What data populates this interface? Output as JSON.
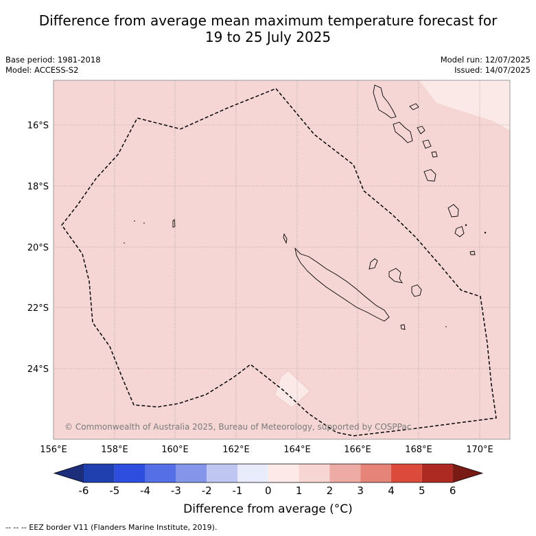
{
  "title_line1": "Difference from average mean maximum temperature forecast for",
  "title_line2": "19 to 25 July 2025",
  "base_period": "Base period: 1981-2018",
  "model": "Model: ACCESS-S2",
  "model_run": "Model run: 12/07/2025",
  "issued": "Issued: 14/07/2025",
  "copyright": "© Commonwealth of Australia 2025, Bureau of Meteorology, supported by COSPPac",
  "lon_ticks": [
    "156°E",
    "158°E",
    "160°E",
    "162°E",
    "164°E",
    "166°E",
    "168°E",
    "170°E"
  ],
  "lat_ticks": [
    "16°S",
    "18°S",
    "20°S",
    "22°S",
    "24°S"
  ],
  "colorbar": {
    "ticks": [
      "-6",
      "-5",
      "-4",
      "-3",
      "-2",
      "-1",
      "0",
      "1",
      "2",
      "3",
      "4",
      "5",
      "6"
    ],
    "colors": [
      "#2140b0",
      "#2e4ee0",
      "#5570e6",
      "#8495ea",
      "#c0c6f2",
      "#e8ebfa",
      "#fdeae8",
      "#f6d5d3",
      "#eeaba5",
      "#e6847a",
      "#dc4a3c",
      "#ad2a22"
    ],
    "low_extend_color": "#1c2d7a",
    "high_extend_color": "#7a1a15",
    "label": "Difference from average (°C)"
  },
  "map_colors": {
    "main": "#f5d6d4",
    "light": "#fbe9e7",
    "frame": "#999999"
  },
  "footer": "-- -- -- EEZ border V11 (Flanders Marine Institute, 2019)."
}
